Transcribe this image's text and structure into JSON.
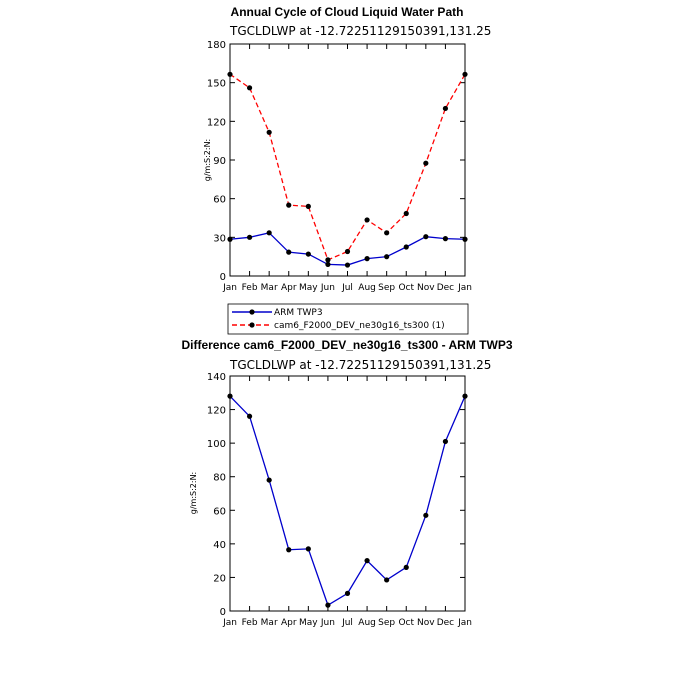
{
  "chart_data": [
    {
      "type": "line",
      "title": "Annual Cycle of Cloud Liquid Water Path",
      "subtitle": "TGCLDLWP at -12.72251129150391,131.25",
      "xlabel": "",
      "ylabel": "g/m:S:2:N:",
      "ylim": [
        0,
        180
      ],
      "yticks": [
        0,
        30,
        60,
        90,
        120,
        150,
        180
      ],
      "categories": [
        "Jan",
        "Feb",
        "Mar",
        "Apr",
        "May",
        "Jun",
        "Jul",
        "Aug",
        "Sep",
        "Oct",
        "Nov",
        "Dec",
        "Jan"
      ],
      "series": [
        {
          "name": "ARM TWP3",
          "color": "#0000cc",
          "dash": "solid",
          "values": [
            28.5,
            30,
            33.5,
            18.5,
            17,
            9,
            8.5,
            13.5,
            15,
            22.5,
            30.5,
            29,
            28.5
          ]
        },
        {
          "name": "cam6_F2000_DEV_ne30g16_ts300 (1)",
          "color": "#ff0000",
          "dash": "dashed",
          "values": [
            156.5,
            146,
            111.5,
            55,
            54,
            12.5,
            19,
            43.5,
            33.5,
            48.5,
            87.5,
            130,
            156.5
          ]
        }
      ],
      "legend_position": "below"
    },
    {
      "type": "line",
      "title": "Difference cam6_F2000_DEV_ne30g16_ts300 - ARM TWP3",
      "subtitle": "TGCLDLWP at -12.72251129150391,131.25",
      "xlabel": "",
      "ylabel": "g/m:S:2:N:",
      "ylim": [
        0,
        140
      ],
      "yticks": [
        0,
        20,
        40,
        60,
        80,
        100,
        120,
        140
      ],
      "categories": [
        "Jan",
        "Feb",
        "Mar",
        "Apr",
        "May",
        "Jun",
        "Jul",
        "Aug",
        "Sep",
        "Oct",
        "Nov",
        "Dec",
        "Jan"
      ],
      "series": [
        {
          "color": "#0000cc",
          "dash": "solid",
          "values": [
            128,
            116,
            78,
            36.5,
            37,
            3.5,
            10.5,
            30,
            18.5,
            26,
            57,
            101,
            128
          ]
        }
      ]
    }
  ]
}
